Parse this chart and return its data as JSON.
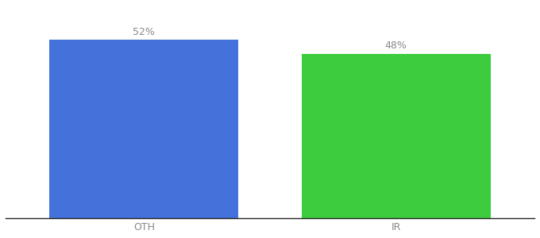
{
  "categories": [
    "OTH",
    "IR"
  ],
  "values": [
    52,
    48
  ],
  "bar_colors": [
    "#4472db",
    "#3dcc3d"
  ],
  "label_texts": [
    "52%",
    "48%"
  ],
  "background_color": "#ffffff",
  "ylim": [
    0,
    62
  ],
  "bar_width": 0.75,
  "label_fontsize": 9,
  "tick_fontsize": 9,
  "label_color": "#888888",
  "tick_color": "#888888",
  "spine_color": "#222222"
}
